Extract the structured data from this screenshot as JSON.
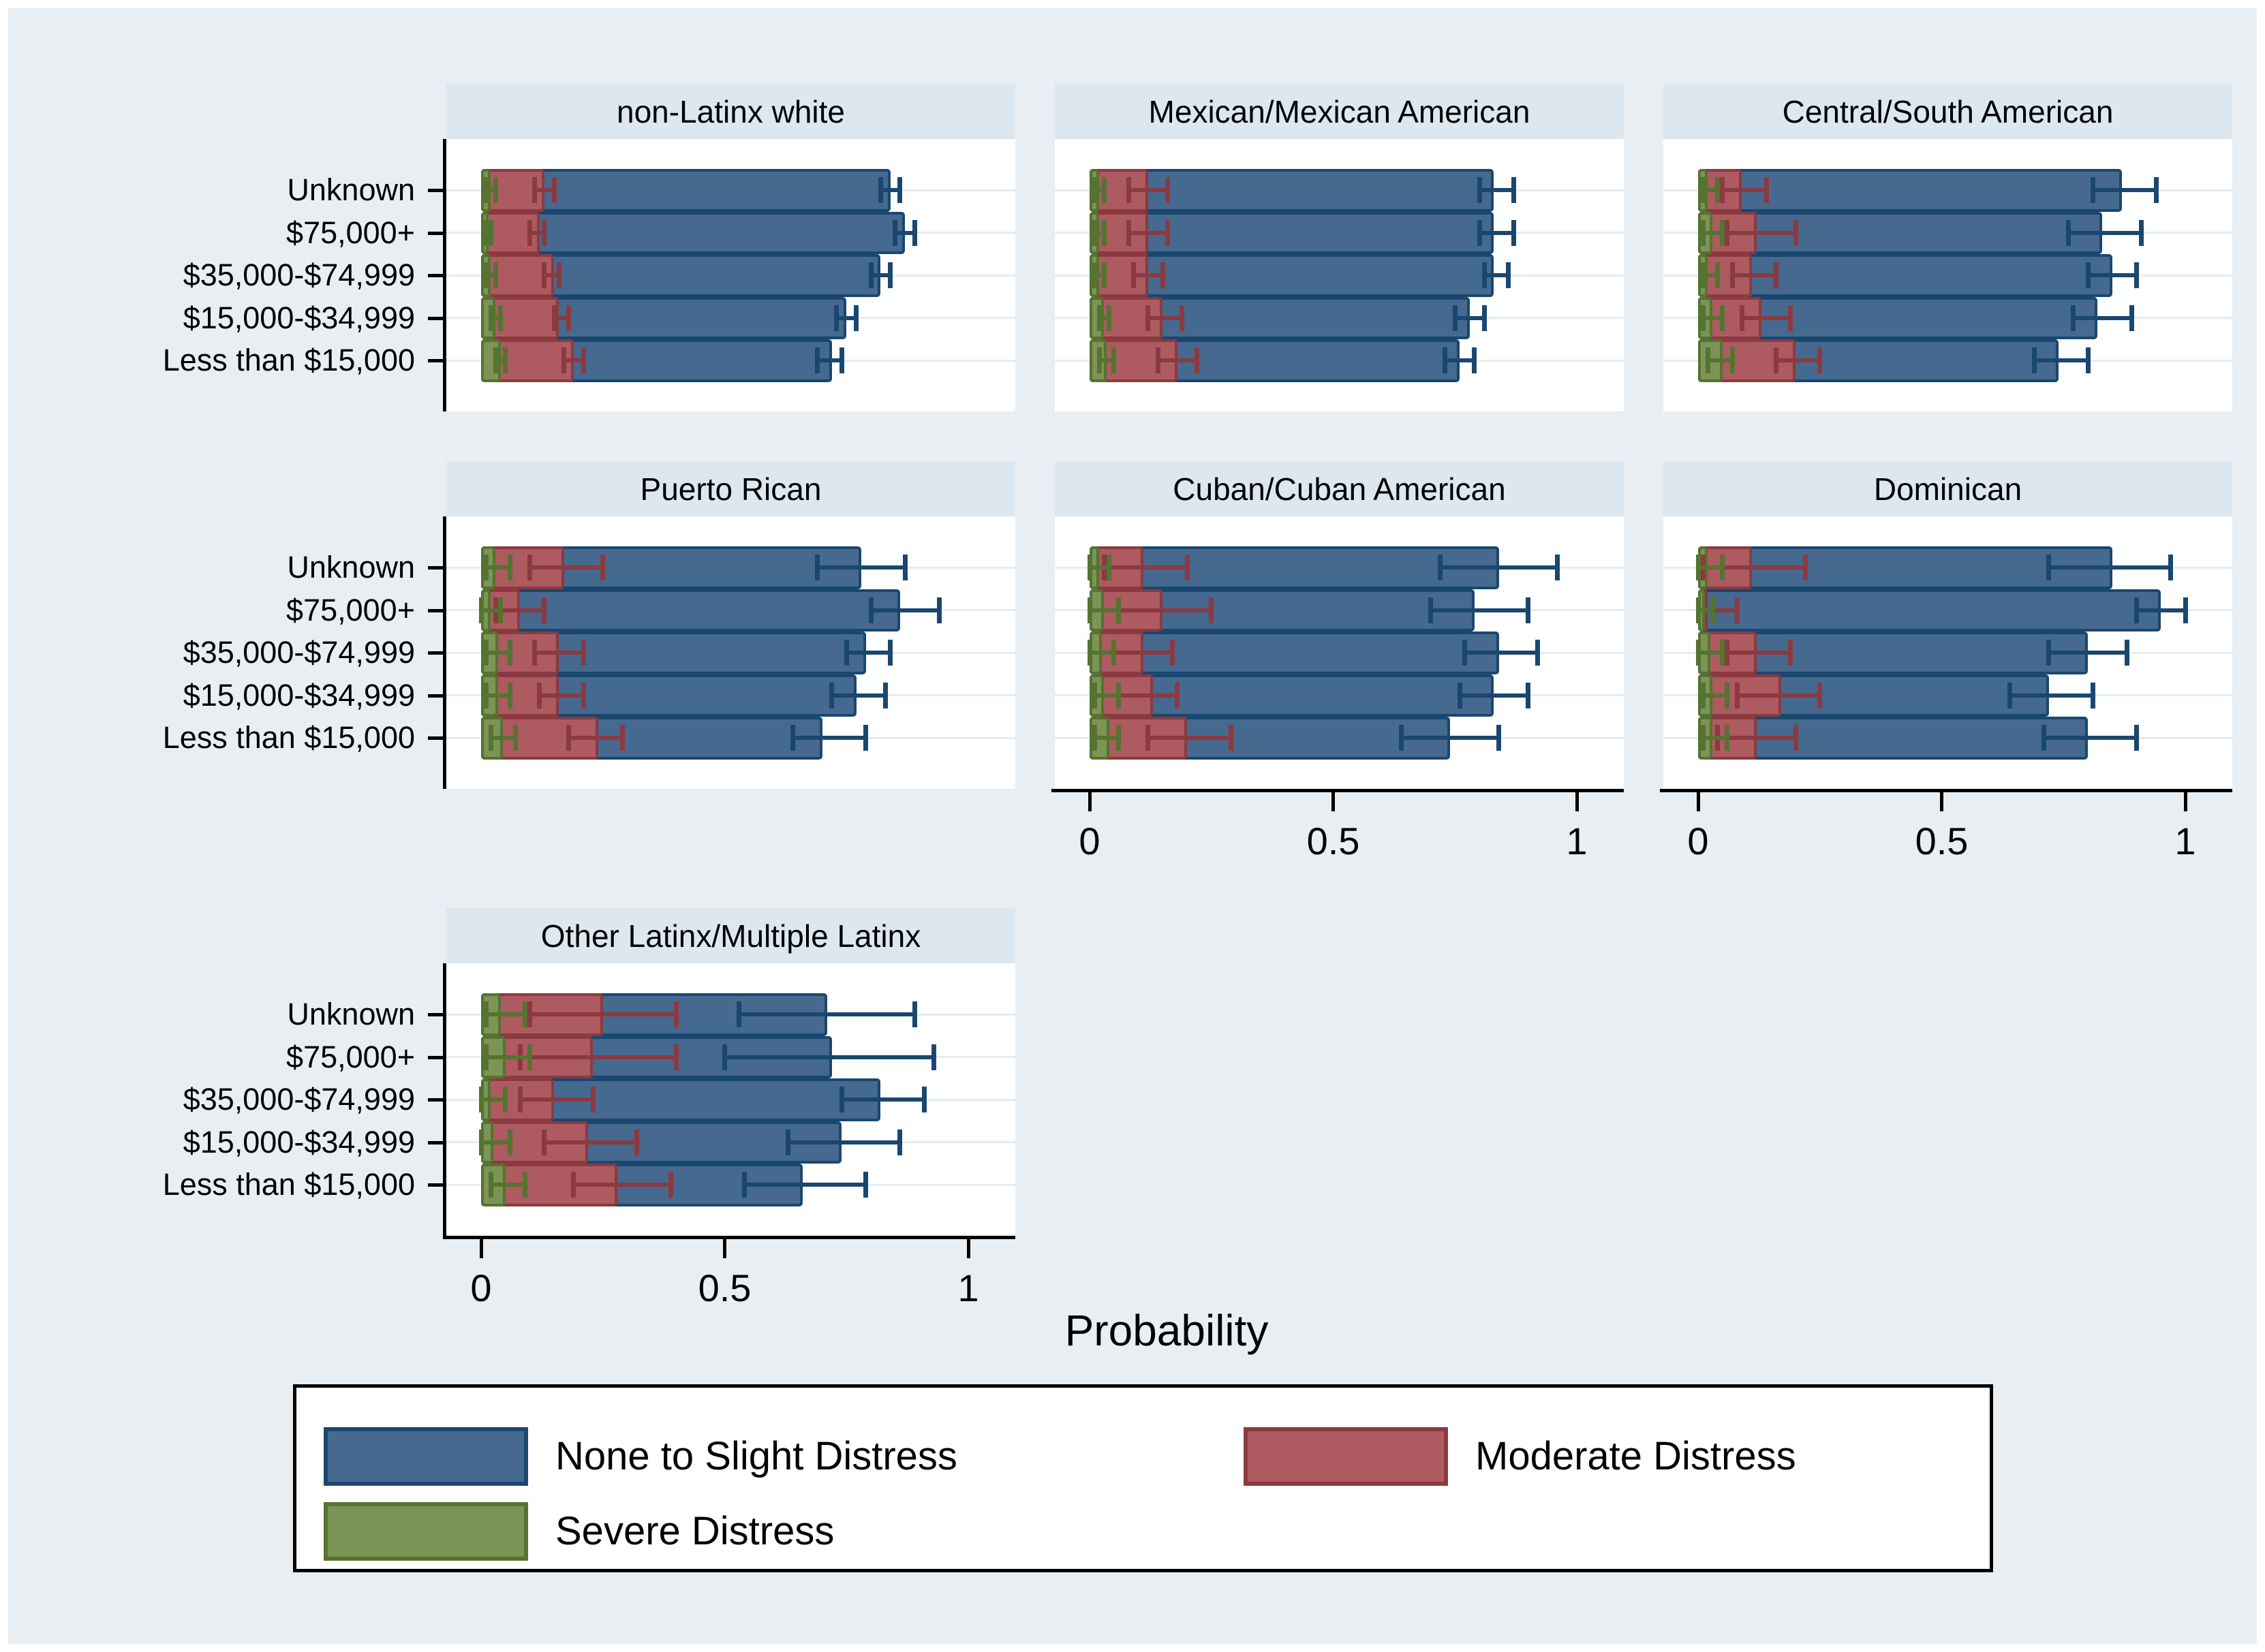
{
  "figure": {
    "xlabel": "Probability"
  },
  "legend": {
    "items": [
      {
        "label": "None to Slight Distress",
        "series": "none_slight"
      },
      {
        "label": "Moderate Distress",
        "series": "moderate"
      },
      {
        "label": "Severe Distress",
        "series": "severe"
      }
    ]
  },
  "colors": {
    "background": "#e8eef2",
    "panel_title_bg": "#dde7f0",
    "plot_bg": "#ffffff",
    "gridline": "#e3edf3",
    "axis": "#000000",
    "none_slight": {
      "fill": "#46698f",
      "edge": "#1a476f"
    },
    "moderate": {
      "fill": "#ad5a60",
      "edge": "#8b3a40"
    },
    "severe": {
      "fill": "#7c9455",
      "edge": "#557331"
    }
  },
  "chart_data": {
    "type": "bar",
    "orientation": "horizontal",
    "xlabel": "Probability",
    "categories": [
      "Unknown",
      "$75,000+",
      "$35,000-$74,999",
      "$15,000-$34,999",
      "Less than $15,000"
    ],
    "x_ticks": [
      "0",
      "0.5",
      "1"
    ],
    "x_tick_values": [
      0,
      0.5,
      1
    ],
    "xlim": [
      -0.07,
      1.09
    ],
    "grid": "horizontal category gridlines only",
    "legend_position": "bottom",
    "series": [
      "None to Slight Distress",
      "Moderate Distress",
      "Severe Distress"
    ],
    "error_bars": "capped whiskers (95% CI) per bar",
    "panels": [
      {
        "title": "non-Latinx white",
        "grid": {
          "row": 0,
          "col": 0
        },
        "y_labels": true,
        "x_axis": false,
        "rows": [
          {
            "category": "Unknown",
            "none_slight": {
              "p": 0.84,
              "lo": 0.82,
              "hi": 0.86
            },
            "moderate": {
              "p": 0.13,
              "lo": 0.11,
              "hi": 0.15
            },
            "severe": {
              "p": 0.02,
              "lo": 0.01,
              "hi": 0.03
            }
          },
          {
            "category": "$75,000+",
            "none_slight": {
              "p": 0.87,
              "lo": 0.85,
              "hi": 0.89
            },
            "moderate": {
              "p": 0.12,
              "lo": 0.1,
              "hi": 0.13
            },
            "severe": {
              "p": 0.015,
              "lo": 0.01,
              "hi": 0.02
            }
          },
          {
            "category": "$35,000-$74,999",
            "none_slight": {
              "p": 0.82,
              "lo": 0.8,
              "hi": 0.84
            },
            "moderate": {
              "p": 0.15,
              "lo": 0.13,
              "hi": 0.16
            },
            "severe": {
              "p": 0.02,
              "lo": 0.01,
              "hi": 0.03
            }
          },
          {
            "category": "$15,000-$34,999",
            "none_slight": {
              "p": 0.75,
              "lo": 0.73,
              "hi": 0.77
            },
            "moderate": {
              "p": 0.16,
              "lo": 0.15,
              "hi": 0.18
            },
            "severe": {
              "p": 0.03,
              "lo": 0.02,
              "hi": 0.04
            }
          },
          {
            "category": "Less than $15,000",
            "none_slight": {
              "p": 0.72,
              "lo": 0.69,
              "hi": 0.74
            },
            "moderate": {
              "p": 0.19,
              "lo": 0.17,
              "hi": 0.21
            },
            "severe": {
              "p": 0.04,
              "lo": 0.03,
              "hi": 0.05
            }
          }
        ]
      },
      {
        "title": "Mexican/Mexican American",
        "grid": {
          "row": 0,
          "col": 1
        },
        "y_labels": false,
        "x_axis": false,
        "rows": [
          {
            "category": "Unknown",
            "none_slight": {
              "p": 0.83,
              "lo": 0.8,
              "hi": 0.87
            },
            "moderate": {
              "p": 0.12,
              "lo": 0.08,
              "hi": 0.16
            },
            "severe": {
              "p": 0.02,
              "lo": 0.01,
              "hi": 0.03
            }
          },
          {
            "category": "$75,000+",
            "none_slight": {
              "p": 0.83,
              "lo": 0.8,
              "hi": 0.87
            },
            "moderate": {
              "p": 0.12,
              "lo": 0.08,
              "hi": 0.16
            },
            "severe": {
              "p": 0.02,
              "lo": 0.01,
              "hi": 0.03
            }
          },
          {
            "category": "$35,000-$74,999",
            "none_slight": {
              "p": 0.83,
              "lo": 0.81,
              "hi": 0.86
            },
            "moderate": {
              "p": 0.12,
              "lo": 0.09,
              "hi": 0.15
            },
            "severe": {
              "p": 0.02,
              "lo": 0.01,
              "hi": 0.03
            }
          },
          {
            "category": "$15,000-$34,999",
            "none_slight": {
              "p": 0.78,
              "lo": 0.75,
              "hi": 0.81
            },
            "moderate": {
              "p": 0.15,
              "lo": 0.12,
              "hi": 0.19
            },
            "severe": {
              "p": 0.03,
              "lo": 0.02,
              "hi": 0.04
            }
          },
          {
            "category": "Less than $15,000",
            "none_slight": {
              "p": 0.76,
              "lo": 0.73,
              "hi": 0.79
            },
            "moderate": {
              "p": 0.18,
              "lo": 0.14,
              "hi": 0.22
            },
            "severe": {
              "p": 0.035,
              "lo": 0.02,
              "hi": 0.05
            }
          }
        ]
      },
      {
        "title": "Central/South American",
        "grid": {
          "row": 0,
          "col": 2
        },
        "y_labels": false,
        "x_axis": false,
        "rows": [
          {
            "category": "Unknown",
            "none_slight": {
              "p": 0.87,
              "lo": 0.81,
              "hi": 0.94
            },
            "moderate": {
              "p": 0.09,
              "lo": 0.05,
              "hi": 0.14
            },
            "severe": {
              "p": 0.02,
              "lo": 0.01,
              "hi": 0.04
            }
          },
          {
            "category": "$75,000+",
            "none_slight": {
              "p": 0.83,
              "lo": 0.76,
              "hi": 0.91
            },
            "moderate": {
              "p": 0.12,
              "lo": 0.06,
              "hi": 0.2
            },
            "severe": {
              "p": 0.03,
              "lo": 0.01,
              "hi": 0.05
            }
          },
          {
            "category": "$35,000-$74,999",
            "none_slight": {
              "p": 0.85,
              "lo": 0.8,
              "hi": 0.9
            },
            "moderate": {
              "p": 0.11,
              "lo": 0.07,
              "hi": 0.16
            },
            "severe": {
              "p": 0.02,
              "lo": 0.01,
              "hi": 0.04
            }
          },
          {
            "category": "$15,000-$34,999",
            "none_slight": {
              "p": 0.82,
              "lo": 0.77,
              "hi": 0.89
            },
            "moderate": {
              "p": 0.13,
              "lo": 0.09,
              "hi": 0.19
            },
            "severe": {
              "p": 0.03,
              "lo": 0.01,
              "hi": 0.05
            }
          },
          {
            "category": "Less than $15,000",
            "none_slight": {
              "p": 0.74,
              "lo": 0.69,
              "hi": 0.8
            },
            "moderate": {
              "p": 0.2,
              "lo": 0.16,
              "hi": 0.25
            },
            "severe": {
              "p": 0.05,
              "lo": 0.02,
              "hi": 0.07
            }
          }
        ]
      },
      {
        "title": "Puerto Rican",
        "grid": {
          "row": 1,
          "col": 0
        },
        "y_labels": true,
        "x_axis": false,
        "rows": [
          {
            "category": "Unknown",
            "none_slight": {
              "p": 0.78,
              "lo": 0.69,
              "hi": 0.87
            },
            "moderate": {
              "p": 0.17,
              "lo": 0.1,
              "hi": 0.25
            },
            "severe": {
              "p": 0.03,
              "lo": 0.01,
              "hi": 0.06
            }
          },
          {
            "category": "$75,000+",
            "none_slight": {
              "p": 0.86,
              "lo": 0.8,
              "hi": 0.94
            },
            "moderate": {
              "p": 0.08,
              "lo": 0.03,
              "hi": 0.13
            },
            "severe": {
              "p": 0.02,
              "lo": 0.0,
              "hi": 0.04
            }
          },
          {
            "category": "$35,000-$74,999",
            "none_slight": {
              "p": 0.79,
              "lo": 0.75,
              "hi": 0.84
            },
            "moderate": {
              "p": 0.16,
              "lo": 0.11,
              "hi": 0.21
            },
            "severe": {
              "p": 0.035,
              "lo": 0.01,
              "hi": 0.06
            }
          },
          {
            "category": "$15,000-$34,999",
            "none_slight": {
              "p": 0.77,
              "lo": 0.72,
              "hi": 0.83
            },
            "moderate": {
              "p": 0.16,
              "lo": 0.12,
              "hi": 0.21
            },
            "severe": {
              "p": 0.035,
              "lo": 0.01,
              "hi": 0.06
            }
          },
          {
            "category": "Less than $15,000",
            "none_slight": {
              "p": 0.7,
              "lo": 0.64,
              "hi": 0.79
            },
            "moderate": {
              "p": 0.24,
              "lo": 0.18,
              "hi": 0.29
            },
            "severe": {
              "p": 0.045,
              "lo": 0.02,
              "hi": 0.07
            }
          }
        ]
      },
      {
        "title": "Cuban/Cuban American",
        "grid": {
          "row": 1,
          "col": 1
        },
        "y_labels": false,
        "x_axis": true,
        "rows": [
          {
            "category": "Unknown",
            "none_slight": {
              "p": 0.84,
              "lo": 0.72,
              "hi": 0.96
            },
            "moderate": {
              "p": 0.11,
              "lo": 0.03,
              "hi": 0.2
            },
            "severe": {
              "p": 0.02,
              "lo": 0.0,
              "hi": 0.04
            }
          },
          {
            "category": "$75,000+",
            "none_slight": {
              "p": 0.79,
              "lo": 0.7,
              "hi": 0.9
            },
            "moderate": {
              "p": 0.15,
              "lo": 0.06,
              "hi": 0.25
            },
            "severe": {
              "p": 0.03,
              "lo": 0.0,
              "hi": 0.06
            }
          },
          {
            "category": "$35,000-$74,999",
            "none_slight": {
              "p": 0.84,
              "lo": 0.77,
              "hi": 0.92
            },
            "moderate": {
              "p": 0.11,
              "lo": 0.05,
              "hi": 0.17
            },
            "severe": {
              "p": 0.025,
              "lo": 0.0,
              "hi": 0.05
            }
          },
          {
            "category": "$15,000-$34,999",
            "none_slight": {
              "p": 0.83,
              "lo": 0.76,
              "hi": 0.9
            },
            "moderate": {
              "p": 0.13,
              "lo": 0.06,
              "hi": 0.18
            },
            "severe": {
              "p": 0.03,
              "lo": 0.01,
              "hi": 0.06
            }
          },
          {
            "category": "Less than $15,000",
            "none_slight": {
              "p": 0.74,
              "lo": 0.64,
              "hi": 0.84
            },
            "moderate": {
              "p": 0.2,
              "lo": 0.12,
              "hi": 0.29
            },
            "severe": {
              "p": 0.04,
              "lo": 0.01,
              "hi": 0.06
            }
          }
        ]
      },
      {
        "title": "Dominican",
        "grid": {
          "row": 1,
          "col": 2
        },
        "y_labels": false,
        "x_axis": true,
        "rows": [
          {
            "category": "Unknown",
            "none_slight": {
              "p": 0.85,
              "lo": 0.72,
              "hi": 0.97
            },
            "moderate": {
              "p": 0.11,
              "lo": 0.01,
              "hi": 0.22
            },
            "severe": {
              "p": 0.02,
              "lo": 0.0,
              "hi": 0.05
            }
          },
          {
            "category": "$75,000+",
            "none_slight": {
              "p": 0.95,
              "lo": 0.9,
              "hi": 1.0
            },
            "moderate": {
              "p": 0.02,
              "lo": 0.0,
              "hi": 0.08
            },
            "severe": {
              "p": 0.01,
              "lo": 0.0,
              "hi": 0.03
            }
          },
          {
            "category": "$35,000-$74,999",
            "none_slight": {
              "p": 0.8,
              "lo": 0.72,
              "hi": 0.88
            },
            "moderate": {
              "p": 0.12,
              "lo": 0.06,
              "hi": 0.19
            },
            "severe": {
              "p": 0.025,
              "lo": 0.0,
              "hi": 0.05
            }
          },
          {
            "category": "$15,000-$34,999",
            "none_slight": {
              "p": 0.72,
              "lo": 0.64,
              "hi": 0.81
            },
            "moderate": {
              "p": 0.17,
              "lo": 0.08,
              "hi": 0.25
            },
            "severe": {
              "p": 0.03,
              "lo": 0.01,
              "hi": 0.06
            }
          },
          {
            "category": "Less than $15,000",
            "none_slight": {
              "p": 0.8,
              "lo": 0.71,
              "hi": 0.9
            },
            "moderate": {
              "p": 0.12,
              "lo": 0.04,
              "hi": 0.2
            },
            "severe": {
              "p": 0.03,
              "lo": 0.01,
              "hi": 0.06
            }
          }
        ]
      },
      {
        "title": "Other Latinx/Multiple Latinx",
        "grid": {
          "row": 2,
          "col": 0
        },
        "y_labels": true,
        "x_axis": true,
        "rows": [
          {
            "category": "Unknown",
            "none_slight": {
              "p": 0.71,
              "lo": 0.53,
              "hi": 0.89
            },
            "moderate": {
              "p": 0.25,
              "lo": 0.1,
              "hi": 0.4
            },
            "severe": {
              "p": 0.04,
              "lo": 0.01,
              "hi": 0.09
            }
          },
          {
            "category": "$75,000+",
            "none_slight": {
              "p": 0.72,
              "lo": 0.5,
              "hi": 0.93
            },
            "moderate": {
              "p": 0.23,
              "lo": 0.08,
              "hi": 0.4
            },
            "severe": {
              "p": 0.05,
              "lo": 0.01,
              "hi": 0.1
            }
          },
          {
            "category": "$35,000-$74,999",
            "none_slight": {
              "p": 0.82,
              "lo": 0.74,
              "hi": 0.91
            },
            "moderate": {
              "p": 0.15,
              "lo": 0.08,
              "hi": 0.23
            },
            "severe": {
              "p": 0.02,
              "lo": 0.0,
              "hi": 0.05
            }
          },
          {
            "category": "$15,000-$34,999",
            "none_slight": {
              "p": 0.74,
              "lo": 0.63,
              "hi": 0.86
            },
            "moderate": {
              "p": 0.22,
              "lo": 0.13,
              "hi": 0.32
            },
            "severe": {
              "p": 0.025,
              "lo": 0.0,
              "hi": 0.06
            }
          },
          {
            "category": "Less than $15,000",
            "none_slight": {
              "p": 0.66,
              "lo": 0.54,
              "hi": 0.79
            },
            "moderate": {
              "p": 0.28,
              "lo": 0.19,
              "hi": 0.39
            },
            "severe": {
              "p": 0.05,
              "lo": 0.02,
              "hi": 0.09
            }
          }
        ]
      }
    ]
  }
}
